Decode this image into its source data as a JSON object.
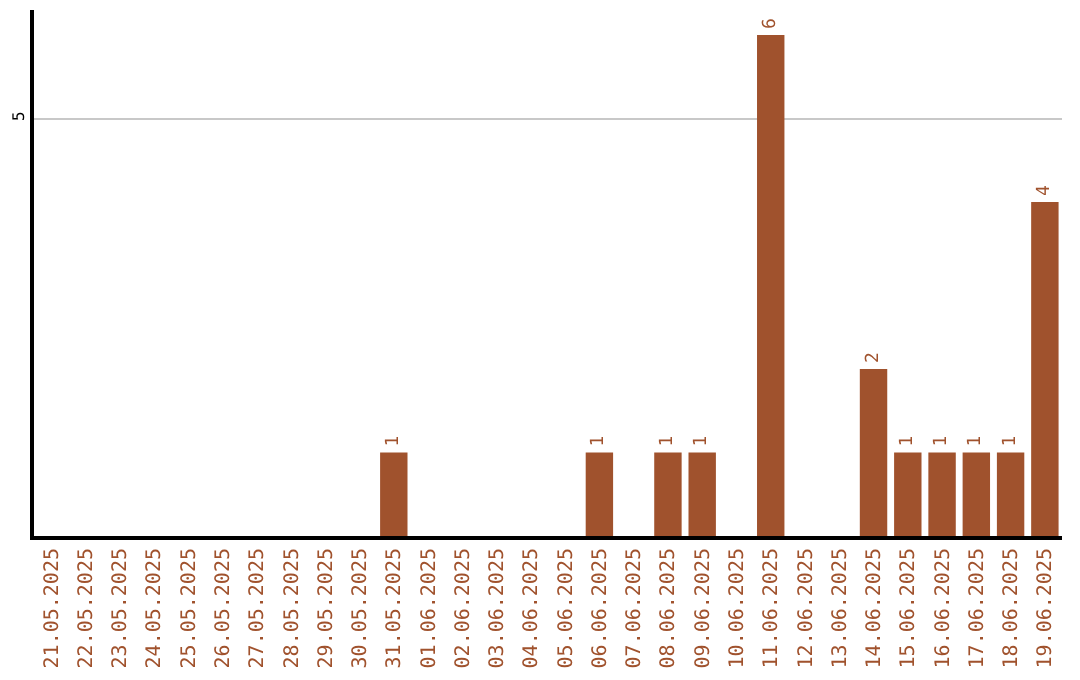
{
  "chart_data": {
    "type": "bar",
    "categories": [
      "21.05.2025",
      "22.05.2025",
      "23.05.2025",
      "24.05.2025",
      "25.05.2025",
      "26.05.2025",
      "27.05.2025",
      "28.05.2025",
      "29.05.2025",
      "30.05.2025",
      "31.05.2025",
      "01.06.2025",
      "02.06.2025",
      "03.06.2025",
      "04.06.2025",
      "05.06.2025",
      "06.06.2025",
      "07.06.2025",
      "08.06.2025",
      "09.06.2025",
      "10.06.2025",
      "11.06.2025",
      "12.06.2025",
      "13.06.2025",
      "14.06.2025",
      "15.06.2025",
      "16.06.2025",
      "17.06.2025",
      "18.06.2025",
      "19.06.2025"
    ],
    "values": [
      0,
      0,
      0,
      0,
      0,
      0,
      0,
      0,
      0,
      0,
      1,
      0,
      0,
      0,
      0,
      0,
      1,
      0,
      1,
      1,
      0,
      6,
      0,
      0,
      2,
      1,
      1,
      1,
      1,
      4
    ],
    "value_labels": [
      null,
      null,
      null,
      null,
      null,
      null,
      null,
      null,
      null,
      null,
      "1",
      null,
      null,
      null,
      null,
      null,
      "1",
      null,
      "1",
      "1",
      null,
      "6",
      null,
      null,
      "2",
      "1",
      "1",
      "1",
      "1",
      "4"
    ],
    "color": "#a0522d",
    "ylim": [
      0,
      6.3
    ],
    "yticks": [
      5
    ],
    "grid": "y"
  }
}
